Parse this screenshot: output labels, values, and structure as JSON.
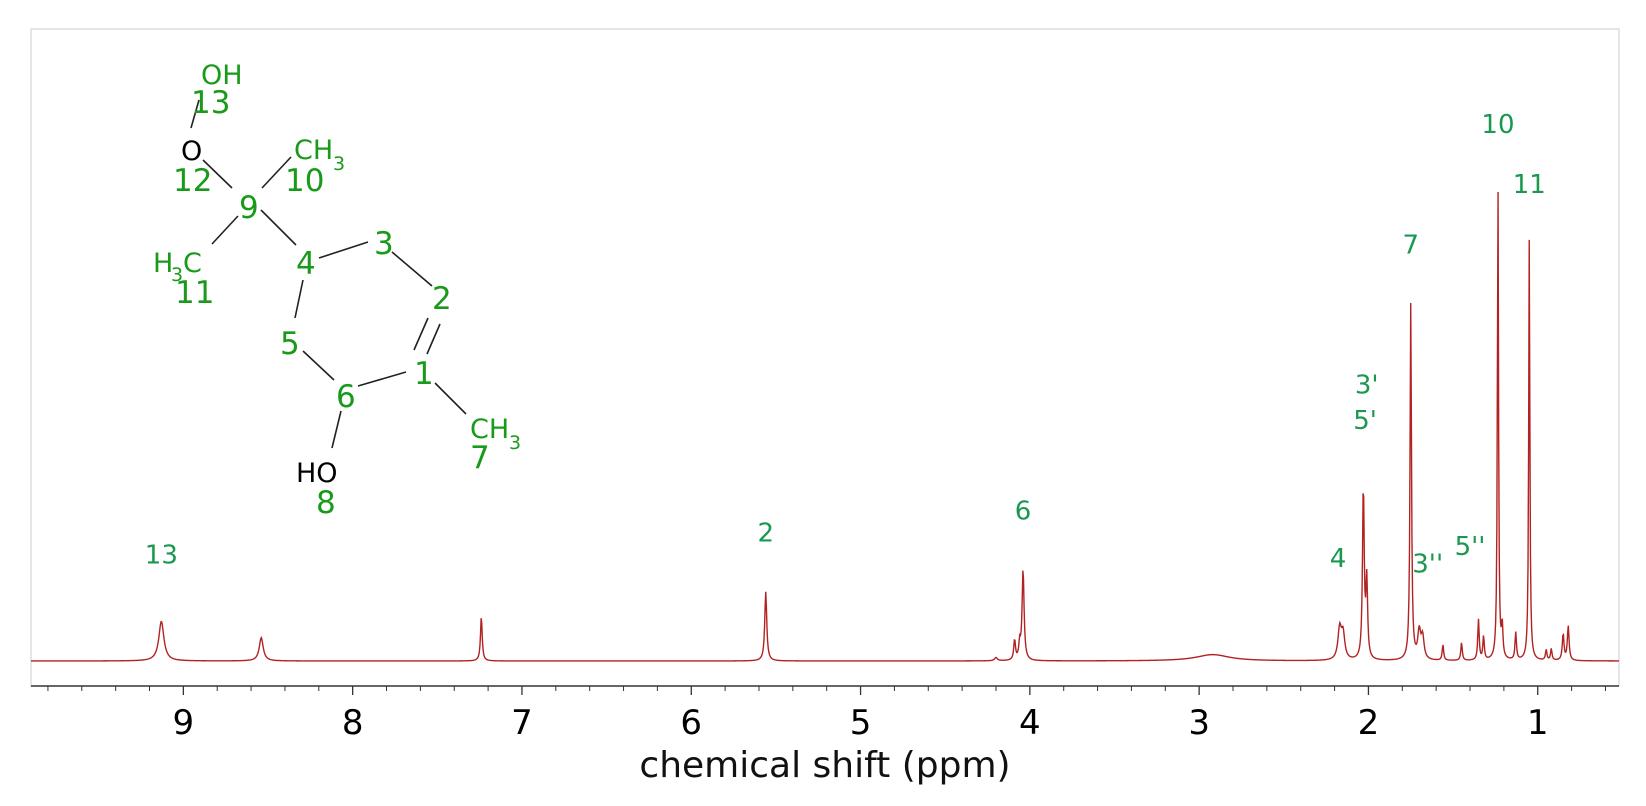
{
  "chart_data": {
    "type": "line",
    "title": "",
    "xlabel": "chemical shift (ppm)",
    "ylabel": "",
    "xlim": [
      9.9,
      0.52
    ],
    "x_reversed": true,
    "x_ticks": [
      9,
      8,
      7,
      6,
      5,
      4,
      3,
      2,
      1
    ],
    "x_tick_labels": [
      "9",
      "8",
      "7",
      "6",
      "5",
      "4",
      "3",
      "2",
      "1"
    ],
    "spectrum_color": "#b22222",
    "label_color": "#1a9850",
    "peaks": [
      {
        "ppm": 9.13,
        "height": 0.075,
        "width": 0.018
      },
      {
        "ppm": 8.54,
        "height": 0.044,
        "width": 0.014
      },
      {
        "ppm": 7.24,
        "height": 0.084,
        "width": 0.006
      },
      {
        "ppm": 5.56,
        "height": 0.131,
        "width": 0.007
      },
      {
        "ppm": 4.09,
        "height": 0.038,
        "width": 0.006
      },
      {
        "ppm": 4.06,
        "height": 0.029,
        "width": 0.006
      },
      {
        "ppm": 4.04,
        "height": 0.172,
        "width": 0.007
      },
      {
        "ppm": 4.2,
        "height": 0.006,
        "width": 0.01
      },
      {
        "ppm": 2.92,
        "height": 0.012,
        "width": 0.12
      },
      {
        "ppm": 2.17,
        "height": 0.058,
        "width": 0.012
      },
      {
        "ppm": 2.15,
        "height": 0.048,
        "width": 0.012
      },
      {
        "ppm": 2.03,
        "height": 0.328,
        "width": 0.006
      },
      {
        "ppm": 2.01,
        "height": 0.146,
        "width": 0.006
      },
      {
        "ppm": 1.75,
        "height": 0.676,
        "width": 0.005
      },
      {
        "ppm": 1.7,
        "height": 0.052,
        "width": 0.01
      },
      {
        "ppm": 1.68,
        "height": 0.042,
        "width": 0.01
      },
      {
        "ppm": 1.56,
        "height": 0.03,
        "width": 0.005
      },
      {
        "ppm": 1.45,
        "height": 0.034,
        "width": 0.005
      },
      {
        "ppm": 1.35,
        "height": 0.077,
        "width": 0.005
      },
      {
        "ppm": 1.32,
        "height": 0.045,
        "width": 0.005
      },
      {
        "ppm": 1.235,
        "height": 0.91,
        "width": 0.004
      },
      {
        "ppm": 1.21,
        "height": 0.06,
        "width": 0.005
      },
      {
        "ppm": 1.13,
        "height": 0.052,
        "width": 0.005
      },
      {
        "ppm": 1.05,
        "height": 0.802,
        "width": 0.004
      },
      {
        "ppm": 0.95,
        "height": 0.02,
        "width": 0.005
      },
      {
        "ppm": 0.92,
        "height": 0.022,
        "width": 0.005
      },
      {
        "ppm": 0.85,
        "height": 0.05,
        "width": 0.006
      },
      {
        "ppm": 0.82,
        "height": 0.065,
        "width": 0.006
      }
    ],
    "annotations": [
      {
        "text": "13",
        "ppm": 9.13,
        "level": 0.185
      },
      {
        "text": "2",
        "ppm": 5.56,
        "level": 0.226
      },
      {
        "text": "6",
        "ppm": 4.04,
        "level": 0.268
      },
      {
        "text": "4",
        "ppm": 2.18,
        "level": 0.178
      },
      {
        "text": "3'",
        "ppm": 2.01,
        "level": 0.507
      },
      {
        "text": "5'",
        "ppm": 2.02,
        "level": 0.439
      },
      {
        "text": "7",
        "ppm": 1.75,
        "level": 0.772
      },
      {
        "text": "3''",
        "ppm": 1.65,
        "level": 0.168
      },
      {
        "text": "5''",
        "ppm": 1.4,
        "level": 0.201
      },
      {
        "text": "10",
        "ppm": 1.235,
        "level": 1.0
      },
      {
        "text": "11",
        "ppm": 1.05,
        "level": 0.886
      }
    ]
  },
  "molecule": {
    "atoms": [
      {
        "id": "OH13",
        "text": "OH",
        "num": "13"
      },
      {
        "id": "O12",
        "text": "O",
        "num": "12"
      },
      {
        "id": "CH3_10",
        "text": "CH",
        "sub": "3",
        "num": "10"
      },
      {
        "id": "C9",
        "num": "9"
      },
      {
        "id": "H3C11",
        "text_pre": "H",
        "sub": "3",
        "text": "C",
        "num": "11"
      },
      {
        "id": "C4",
        "num": "4"
      },
      {
        "id": "C3",
        "num": "3"
      },
      {
        "id": "C2",
        "num": "2"
      },
      {
        "id": "C5",
        "num": "5"
      },
      {
        "id": "C1",
        "num": "1"
      },
      {
        "id": "C6",
        "num": "6"
      },
      {
        "id": "CH3_7",
        "text": "CH",
        "sub": "3",
        "num": "7"
      },
      {
        "id": "HO8",
        "text": "HO",
        "num": "8"
      }
    ]
  }
}
